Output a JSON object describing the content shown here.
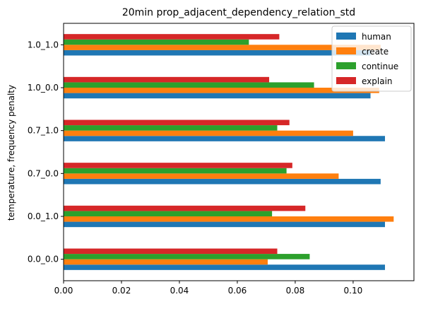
{
  "chart_data": {
    "type": "bar",
    "orientation": "horizontal",
    "title": "20min prop_adjacent_dependency_relation_std",
    "xlabel": "",
    "ylabel": "temperature, frequency penalty",
    "categories": [
      "0.0_0.0",
      "0.0_1.0",
      "0.7_0.0",
      "0.7_1.0",
      "1.0_0.0",
      "1.0_1.0"
    ],
    "xlim": [
      0,
      0.121
    ],
    "xticks": [
      0.0,
      0.02,
      0.04,
      0.06,
      0.08,
      0.1
    ],
    "xtick_labels": [
      "0.00",
      "0.02",
      "0.04",
      "0.06",
      "0.08",
      "0.10"
    ],
    "legend_position": "top-right",
    "series": [
      {
        "name": "human",
        "color": "#1f77b4",
        "values": [
          0.111,
          0.111,
          0.1095,
          0.111,
          0.106,
          0.106
        ]
      },
      {
        "name": "create",
        "color": "#ff7f0e",
        "values": [
          0.0705,
          0.114,
          0.095,
          0.1,
          0.109,
          0.1095
        ]
      },
      {
        "name": "continue",
        "color": "#2ca02c",
        "values": [
          0.085,
          0.072,
          0.077,
          0.0738,
          0.0865,
          0.064
        ]
      },
      {
        "name": "explain",
        "color": "#d62728",
        "values": [
          0.0738,
          0.0835,
          0.079,
          0.078,
          0.071,
          0.0745
        ]
      }
    ]
  }
}
